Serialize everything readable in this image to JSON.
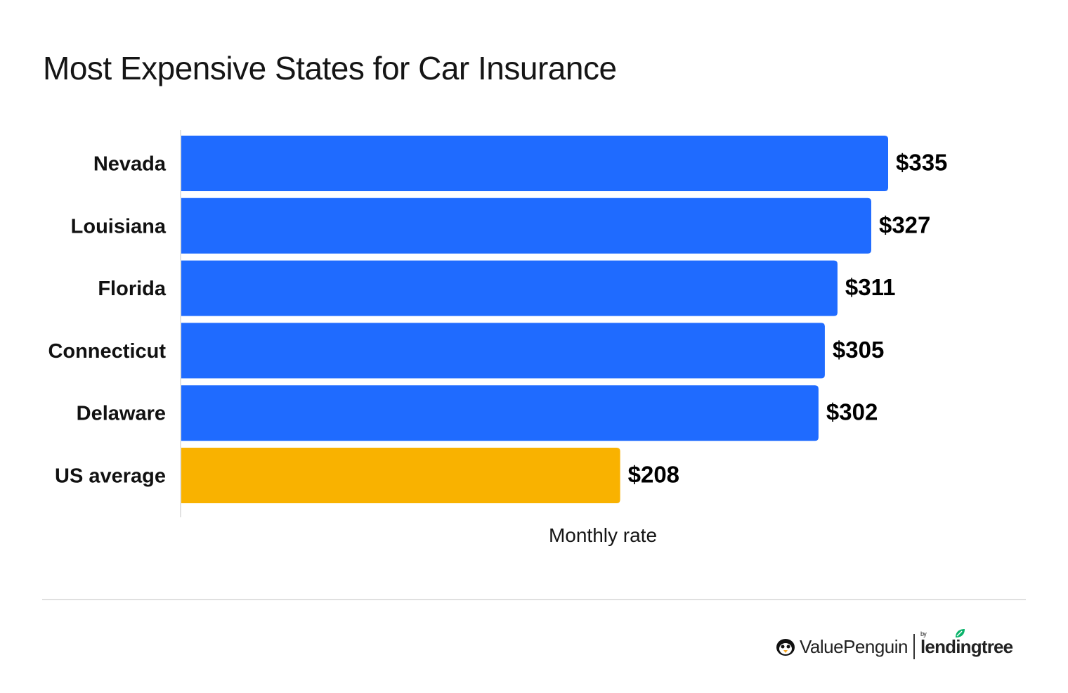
{
  "chart_data": {
    "type": "bar",
    "orientation": "horizontal",
    "title": "Most Expensive States for Car Insurance",
    "xlabel": "Monthly rate",
    "ylabel": "",
    "categories": [
      "Nevada",
      "Louisiana",
      "Florida",
      "Connecticut",
      "Delaware",
      "US average"
    ],
    "values": [
      335,
      327,
      311,
      305,
      302,
      208
    ],
    "value_labels": [
      "$335",
      "$327",
      "$311",
      "$305",
      "$302",
      "$208"
    ],
    "colors": [
      "#1f6bff",
      "#1f6bff",
      "#1f6bff",
      "#1f6bff",
      "#1f6bff",
      "#f9b200"
    ],
    "xlim": [
      0,
      480
    ],
    "grid": false,
    "legend": "none"
  },
  "footer": {
    "brand": "ValuePenguin",
    "by": "by",
    "partner": "lendingtree"
  }
}
